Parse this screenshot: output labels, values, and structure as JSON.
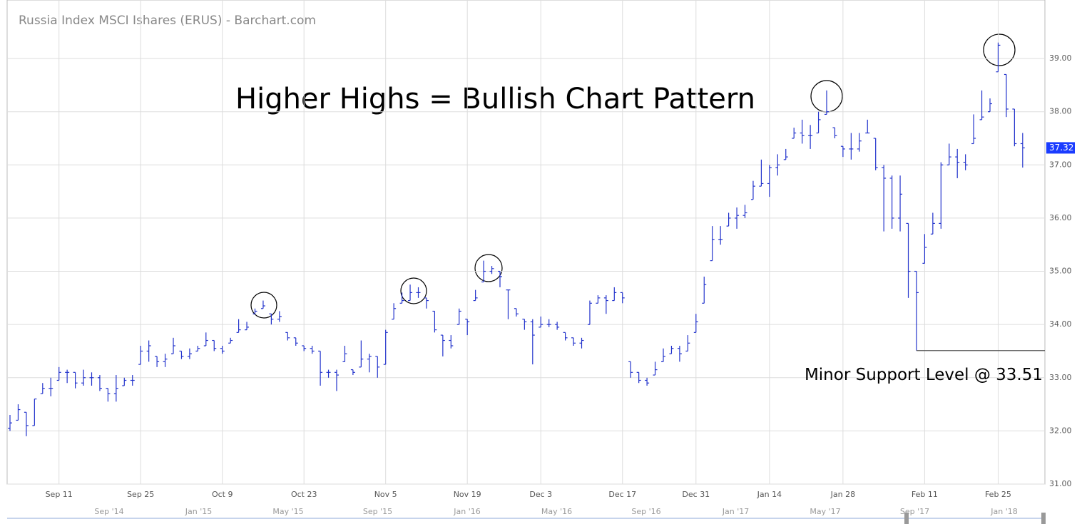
{
  "chart_data": {
    "type": "ohlc",
    "title": "Russia Index MSCI Ishares (ERUS) - Barchart.com",
    "annotation": "Higher Highs = Bullish Chart Pattern",
    "support": {
      "value": 33.51,
      "label": "Minor Support Level @ 33.51"
    },
    "navigator_labels": [
      "Sep '14",
      "Jan '15",
      "May '15",
      "Sep '15",
      "Jan '16",
      "May '16",
      "Sep '16",
      "Jan '17",
      "May '17",
      "Sep '17",
      "Jan '18"
    ],
    "color": "#2233cc",
    "grid": true,
    "ylim": [
      31,
      40.1
    ],
    "yticks": [
      {
        "value": 31,
        "label": "31.00"
      },
      {
        "value": 32,
        "label": "32.00"
      },
      {
        "value": 33,
        "label": "33.00"
      },
      {
        "value": 34,
        "label": "34.00"
      },
      {
        "value": 35,
        "label": "35.00"
      },
      {
        "value": 36,
        "label": "36.00"
      },
      {
        "value": 37,
        "label": "37.00"
      },
      {
        "value": 38,
        "label": "38.00"
      },
      {
        "value": 39,
        "label": "39.00"
      }
    ],
    "categories": [
      null,
      null,
      null,
      null,
      null,
      null,
      "Sep 11",
      null,
      null,
      null,
      null,
      null,
      null,
      null,
      null,
      null,
      "Sep 25",
      null,
      null,
      null,
      null,
      null,
      null,
      null,
      null,
      null,
      "Oct 9",
      null,
      null,
      null,
      null,
      null,
      null,
      null,
      null,
      null,
      "Oct 23",
      null,
      null,
      null,
      null,
      null,
      null,
      null,
      null,
      null,
      "Nov 5",
      null,
      null,
      null,
      null,
      null,
      null,
      null,
      null,
      null,
      "Nov 19",
      null,
      null,
      null,
      null,
      null,
      null,
      null,
      null,
      "Dec 3",
      null,
      null,
      null,
      null,
      null,
      null,
      null,
      null,
      null,
      "Dec 17",
      null,
      null,
      null,
      null,
      null,
      null,
      null,
      null,
      "Dec 31",
      null,
      null,
      null,
      null,
      null,
      null,
      null,
      null,
      "Jan 14",
      null,
      null,
      null,
      null,
      null,
      null,
      null,
      null,
      "Jan 28",
      null,
      null,
      null,
      null,
      null,
      null,
      null,
      null,
      null,
      "Feb 11",
      null,
      null,
      null,
      null,
      null,
      null,
      null,
      null,
      "Feb 25",
      null,
      null,
      null
    ],
    "open": [
      32.05,
      32.2,
      32.35,
      32.1,
      32.7,
      32.8,
      32.95,
      33.1,
      33.1,
      32.9,
      33.0,
      33.0,
      32.8,
      32.7,
      32.85,
      32.95,
      33.25,
      33.5,
      33.4,
      33.3,
      33.45,
      33.5,
      33.4,
      33.5,
      33.6,
      33.7,
      33.55,
      33.65,
      33.85,
      33.9,
      34.2,
      34.3,
      34.2,
      34.1,
      33.85,
      33.75,
      33.6,
      33.55,
      33.5,
      33.1,
      33.1,
      33.3,
      33.15,
      33.2,
      33.35,
      33.4,
      33.25,
      34.1,
      34.4,
      34.45,
      34.6,
      34.5,
      34.25,
      33.8,
      33.7,
      34.0,
      34.1,
      34.45,
      34.8,
      35.0,
      35.0,
      34.65,
      34.3,
      34.1,
      34.05,
      33.95,
      34.0,
      34.0,
      33.85,
      33.75,
      33.65,
      34.0,
      34.4,
      34.5,
      34.45,
      34.6,
      33.3,
      33.1,
      32.95,
      33.05,
      33.3,
      33.45,
      33.55,
      33.5,
      33.85,
      34.4,
      35.2,
      35.6,
      35.85,
      36.0,
      36.05,
      36.35,
      36.6,
      36.65,
      36.95,
      37.1,
      37.5,
      37.6,
      37.55,
      37.6,
      37.95,
      37.7,
      37.35,
      37.3,
      37.3,
      37.6,
      37.5,
      36.95,
      36.75,
      36.0,
      35.9,
      35.0,
      35.15,
      35.7,
      35.9,
      37.0,
      37.15,
      37.05,
      37.4,
      37.85,
      38.0,
      38.75,
      38.7,
      38.05,
      37.4
    ],
    "high": [
      32.3,
      32.5,
      32.35,
      32.6,
      32.9,
      33.0,
      33.2,
      33.15,
      33.1,
      33.15,
      33.1,
      33.05,
      32.8,
      33.05,
      33.0,
      33.05,
      33.6,
      33.7,
      33.4,
      33.45,
      33.75,
      33.5,
      33.55,
      33.6,
      33.85,
      33.7,
      33.6,
      33.75,
      34.1,
      34.05,
      34.3,
      34.45,
      34.2,
      34.25,
      33.85,
      33.75,
      33.6,
      33.6,
      33.5,
      33.15,
      33.15,
      33.6,
      33.15,
      33.7,
      33.45,
      33.4,
      33.9,
      34.4,
      34.6,
      34.75,
      34.7,
      34.5,
      34.25,
      33.8,
      33.8,
      34.3,
      34.1,
      34.65,
      35.2,
      35.1,
      35.0,
      34.65,
      34.3,
      34.1,
      34.1,
      34.15,
      34.1,
      34.05,
      33.85,
      33.75,
      33.75,
      34.45,
      34.55,
      34.55,
      34.7,
      34.6,
      33.3,
      33.1,
      33.0,
      33.3,
      33.55,
      33.6,
      33.6,
      33.8,
      34.2,
      34.9,
      35.85,
      35.85,
      36.1,
      36.2,
      36.25,
      36.7,
      37.1,
      37.0,
      37.2,
      37.3,
      37.7,
      37.85,
      37.75,
      38.0,
      38.4,
      37.7,
      37.35,
      37.6,
      37.6,
      37.85,
      37.5,
      37.0,
      36.8,
      36.8,
      35.9,
      35.0,
      35.7,
      36.1,
      37.05,
      37.4,
      37.3,
      37.2,
      37.95,
      38.4,
      38.25,
      39.3,
      38.7,
      38.05,
      37.6
    ],
    "low": [
      32.0,
      32.2,
      31.9,
      32.1,
      32.7,
      32.65,
      32.95,
      32.9,
      32.8,
      32.85,
      32.85,
      32.75,
      32.55,
      32.55,
      32.85,
      32.85,
      33.25,
      33.3,
      33.2,
      33.2,
      33.45,
      33.35,
      33.35,
      33.5,
      33.6,
      33.5,
      33.45,
      33.65,
      33.85,
      33.9,
      34.2,
      34.3,
      34.0,
      34.05,
      33.7,
      33.6,
      33.5,
      33.45,
      32.85,
      33.0,
      32.75,
      33.3,
      33.05,
      33.2,
      33.1,
      33.0,
      33.25,
      34.1,
      34.4,
      34.45,
      34.5,
      34.3,
      33.85,
      33.4,
      33.55,
      34.0,
      33.8,
      34.45,
      34.8,
      34.95,
      34.7,
      34.1,
      34.15,
      33.9,
      33.25,
      33.95,
      33.95,
      33.9,
      33.7,
      33.6,
      33.55,
      34.0,
      34.4,
      34.2,
      34.45,
      34.4,
      33.0,
      32.9,
      32.85,
      33.05,
      33.3,
      33.45,
      33.3,
      33.5,
      33.85,
      34.4,
      35.2,
      35.5,
      35.85,
      35.8,
      36.0,
      36.35,
      36.6,
      36.4,
      36.8,
      37.1,
      37.5,
      37.4,
      37.3,
      37.6,
      37.95,
      37.5,
      37.15,
      37.1,
      37.25,
      37.6,
      36.9,
      35.75,
      35.8,
      35.75,
      34.5,
      33.51,
      35.15,
      35.7,
      35.8,
      37.0,
      36.75,
      36.9,
      37.4,
      37.85,
      38.0,
      38.75,
      37.9,
      37.35,
      36.95
    ],
    "close": [
      32.15,
      32.4,
      32.1,
      32.6,
      32.8,
      32.8,
      33.1,
      33.1,
      32.9,
      33.0,
      33.0,
      32.8,
      32.7,
      32.8,
      32.95,
      32.95,
      33.5,
      33.6,
      33.3,
      33.35,
      33.6,
      33.4,
      33.45,
      33.55,
      33.7,
      33.55,
      33.5,
      33.7,
      33.9,
      33.95,
      34.25,
      34.35,
      34.1,
      34.15,
      33.75,
      33.65,
      33.55,
      33.5,
      33.1,
      33.1,
      33.05,
      33.45,
      33.1,
      33.35,
      33.4,
      33.2,
      33.85,
      34.3,
      34.45,
      34.6,
      34.6,
      34.45,
      33.9,
      33.7,
      33.6,
      34.25,
      34.05,
      34.5,
      35.0,
      35.05,
      34.9,
      34.65,
      34.2,
      34.05,
      33.8,
      34.0,
      34.0,
      33.95,
      33.75,
      33.65,
      33.7,
      34.4,
      34.5,
      34.45,
      34.6,
      34.5,
      33.1,
      32.95,
      32.9,
      33.15,
      33.4,
      33.55,
      33.45,
      33.65,
      34.05,
      34.75,
      35.6,
      35.6,
      36.0,
      36.05,
      36.1,
      36.6,
      36.65,
      36.95,
      37.0,
      37.15,
      37.6,
      37.55,
      37.55,
      37.85,
      38.0,
      37.55,
      37.3,
      37.3,
      37.45,
      37.6,
      36.95,
      36.75,
      36.0,
      36.45,
      35.0,
      34.6,
      35.45,
      35.9,
      37.0,
      37.15,
      37.05,
      37.0,
      37.5,
      37.9,
      38.15,
      39.25,
      38.05,
      37.4,
      37.32
    ]
  }
}
